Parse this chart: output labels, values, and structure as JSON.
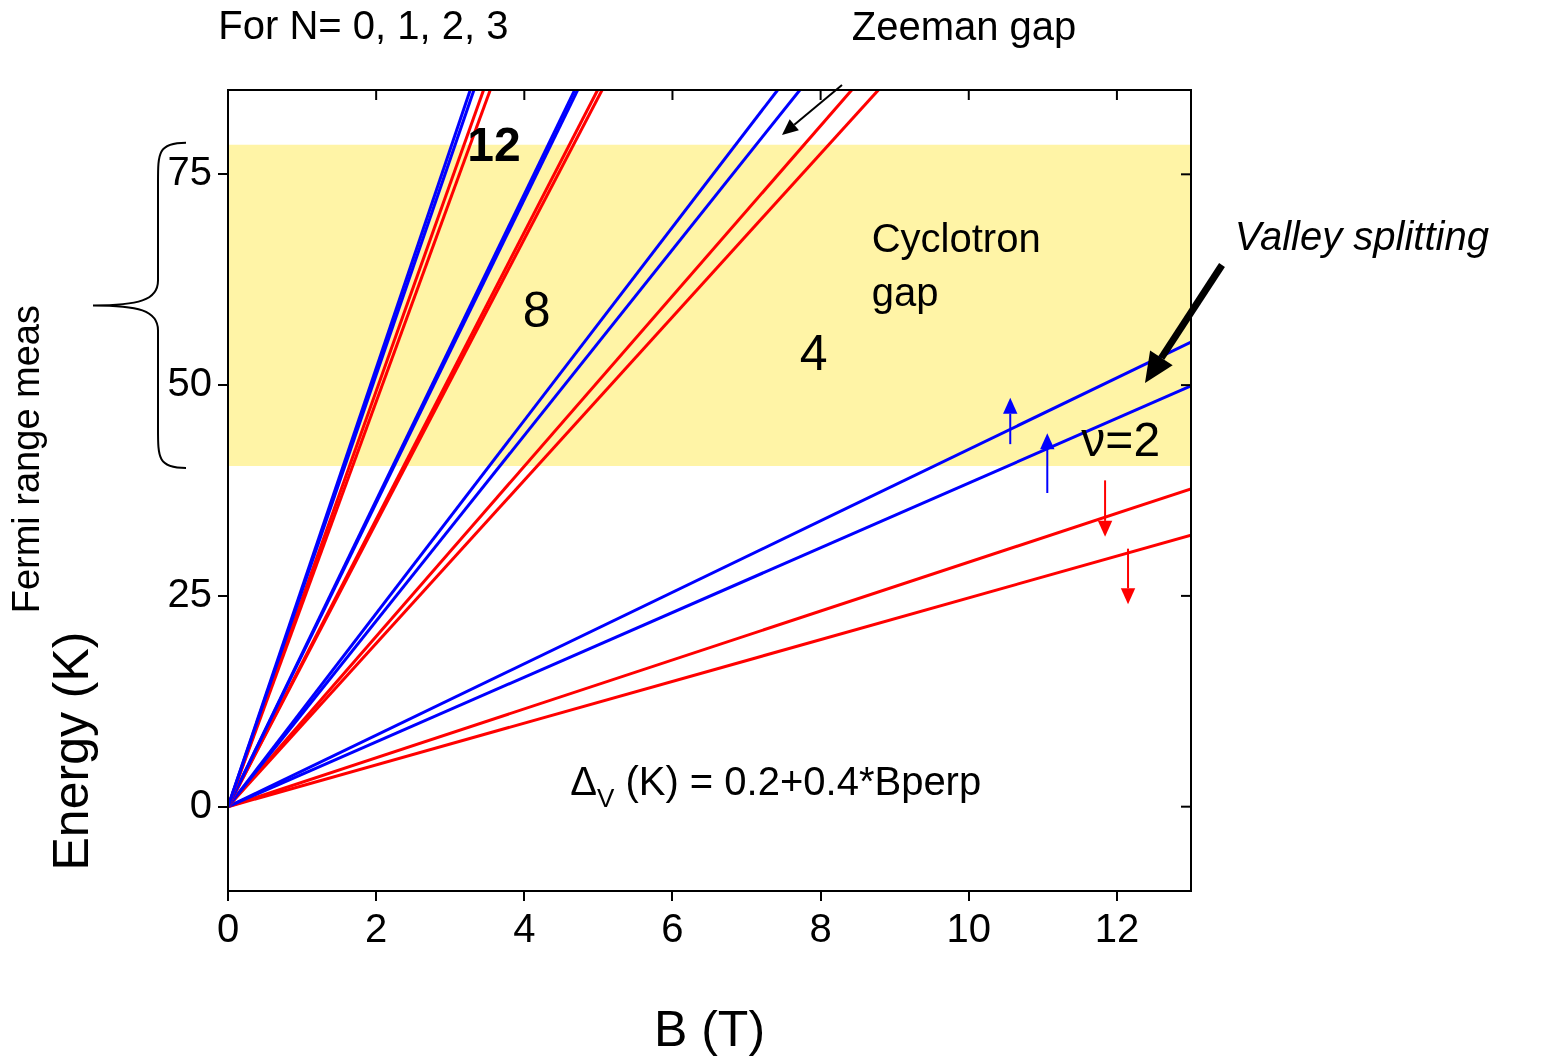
{
  "chart_data": {
    "type": "line",
    "xlabel": "B (T)",
    "ylabel": "Energy (K)",
    "xlim": [
      0,
      13
    ],
    "ylim": [
      -10,
      85
    ],
    "xticks": [
      0,
      2,
      4,
      6,
      8,
      10,
      12
    ],
    "yticks": [
      0,
      25,
      50,
      75
    ],
    "grid": false,
    "legend": false,
    "marker": "none",
    "line_style": "solid",
    "series": [
      {
        "color": "#0000ff",
        "x": [
          0,
          3.27
        ],
        "values": [
          0,
          85
        ]
      },
      {
        "color": "#0000ff",
        "x": [
          0,
          3.32
        ],
        "values": [
          0,
          85
        ]
      },
      {
        "color": "#ff0000",
        "x": [
          0,
          3.45
        ],
        "values": [
          0,
          85
        ]
      },
      {
        "color": "#ff0000",
        "x": [
          0,
          3.54
        ],
        "values": [
          0,
          85
        ]
      },
      {
        "color": "#0000ff",
        "x": [
          0,
          4.68
        ],
        "values": [
          0,
          85
        ]
      },
      {
        "color": "#0000ff",
        "x": [
          0,
          4.72
        ],
        "values": [
          0,
          85
        ]
      },
      {
        "color": "#ff0000",
        "x": [
          0,
          4.99
        ],
        "values": [
          0,
          85
        ]
      },
      {
        "color": "#ff0000",
        "x": [
          0,
          5.05
        ],
        "values": [
          0,
          85
        ]
      },
      {
        "color": "#0000ff",
        "x": [
          0,
          7.42
        ],
        "values": [
          0,
          85
        ]
      },
      {
        "color": "#0000ff",
        "x": [
          0,
          7.72
        ],
        "values": [
          0,
          85
        ]
      },
      {
        "color": "#ff0000",
        "x": [
          0,
          8.42
        ],
        "values": [
          0,
          85
        ]
      },
      {
        "color": "#ff0000",
        "x": [
          0,
          8.78
        ],
        "values": [
          0,
          85
        ]
      },
      {
        "color": "#0000ff",
        "x": [
          0,
          13
        ],
        "values": [
          0,
          55.1
        ]
      },
      {
        "color": "#0000ff",
        "x": [
          0,
          13
        ],
        "values": [
          0,
          49.9
        ]
      },
      {
        "color": "#ff0000",
        "x": [
          0,
          13
        ],
        "values": [
          0,
          37.7
        ]
      },
      {
        "color": "#ff0000",
        "x": [
          0,
          13
        ],
        "values": [
          0,
          32.2
        ]
      }
    ],
    "bands": [
      {
        "axis": "y",
        "from": 40.4,
        "to": 78.5,
        "color": "#ffe94d"
      }
    ],
    "annotations": [
      "For N= 0, 1, 2, 3",
      "Zeeman gap",
      "Cyclotron gap",
      "Valley splitting",
      "12",
      "8",
      "4",
      "ν=2",
      "Δ$_{V}$ (K) = 0.2+0.4*Bperp",
      "Fermi range meas"
    ]
  }
}
